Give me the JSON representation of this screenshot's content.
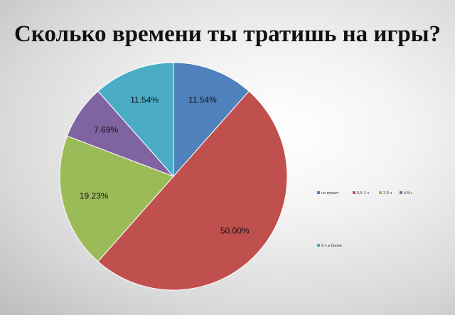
{
  "title": "Сколько времени ты тратишь на игры?",
  "chart_data": {
    "type": "pie",
    "title": "Сколько времени ты тратишь на игры?",
    "categories": [
      "не играет",
      "0,5-1 ч",
      "2-3 ч",
      "4-5ч",
      "6 ч и более"
    ],
    "values": [
      11.54,
      50.0,
      19.23,
      7.69,
      11.54
    ],
    "labels": [
      "11.54%",
      "50.00%",
      "19.23%",
      "7.69%",
      "11.54%"
    ],
    "colors": [
      "#4f81bd",
      "#c0504d",
      "#9bbb59",
      "#8064a2",
      "#4bacc6"
    ],
    "legend": "right"
  }
}
